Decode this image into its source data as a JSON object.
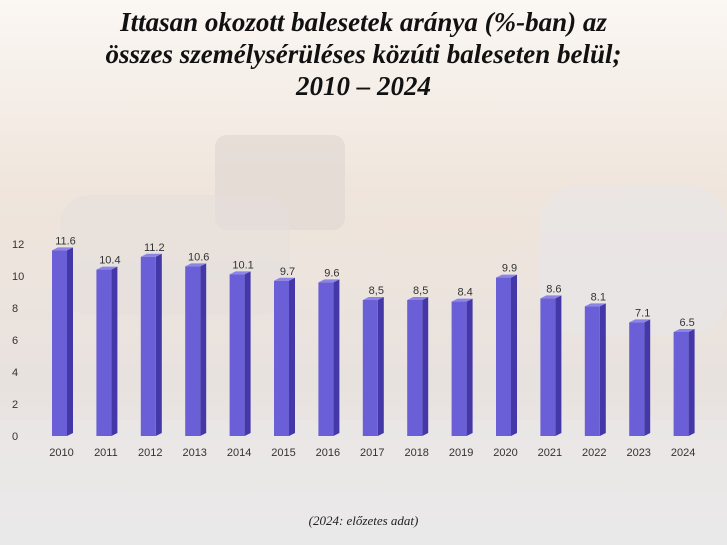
{
  "title_lines": [
    "Ittasan okozott balesetek aránya (%-ban) az",
    "összes személysérüléses közúti baleseten belül;",
    "2010 – 2024"
  ],
  "footnote": "(2024: előzetes adat)",
  "colors": {
    "bar_front": "#6a5fd6",
    "bar_side": "#4437a8",
    "bar_top": "#8c84e6"
  },
  "chart_data": {
    "type": "bar",
    "title": "Ittasan okozott balesetek aránya (%-ban) az összes személysérüléses közúti baleseten belül; 2010 – 2024",
    "xlabel": "",
    "ylabel": "",
    "ylim": [
      0,
      12
    ],
    "yticks": [
      0,
      2,
      4,
      6,
      8,
      10,
      12
    ],
    "grid": false,
    "categories": [
      "2010",
      "2011",
      "2012",
      "2013",
      "2014",
      "2015",
      "2016",
      "2017",
      "2018",
      "2019",
      "2020",
      "2021",
      "2022",
      "2023",
      "2024"
    ],
    "values": [
      11.6,
      10.4,
      11.2,
      10.6,
      10.1,
      9.7,
      9.6,
      8.5,
      8.5,
      8.4,
      9.9,
      8.6,
      8.1,
      7.1,
      6.5
    ],
    "data_labels": [
      "11.6",
      "10.4",
      "11.2",
      "10.6",
      "10.1",
      "9.7",
      "9.6",
      "8,5",
      "8,5",
      "8.4",
      "9.9",
      "8.6",
      "8.1",
      "7.1",
      "6.5"
    ]
  }
}
